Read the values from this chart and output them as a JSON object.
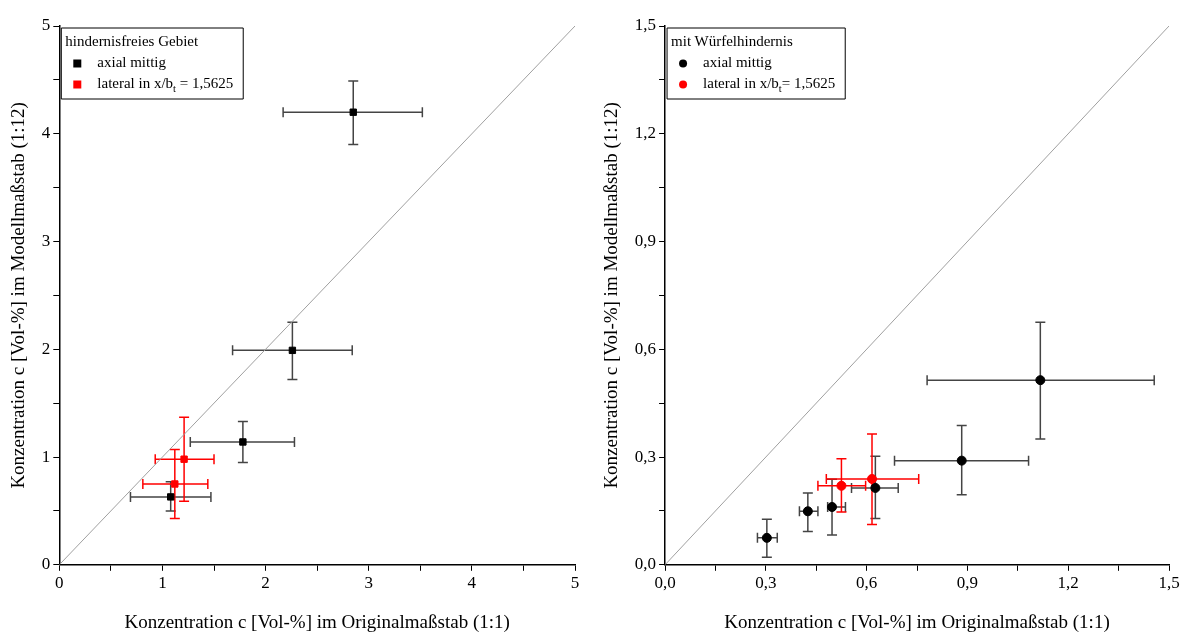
{
  "chart_data": [
    {
      "type": "scatter",
      "xlabel": "Konzentration c [Vol-%] im Originalmaßstab (1:1)",
      "ylabel": "Konzentration c [Vol-%] im Modellmaßstab (1:12)",
      "legend_title": "hindernisfreies Gebiet",
      "legend": "top left",
      "grid": false,
      "marker": "square",
      "xlim": [
        0,
        5
      ],
      "ylim": [
        0,
        5
      ],
      "xticks": [
        0,
        {
          "value": 0.5,
          "label": null
        },
        1,
        {
          "value": 1.5,
          "label": null
        },
        2,
        {
          "value": 2.5,
          "label": null
        },
        3,
        {
          "value": 3.5,
          "label": null
        },
        4,
        {
          "value": 4.5,
          "label": null
        },
        5
      ],
      "yticks": [
        0,
        {
          "value": 0.5,
          "label": null
        },
        1,
        {
          "value": 1.5,
          "label": null
        },
        2,
        {
          "value": 2.5,
          "label": null
        },
        3,
        {
          "value": 3.5,
          "label": null
        },
        4,
        {
          "value": 4.5,
          "label": null
        },
        5
      ],
      "series": [
        {
          "name": "axial mittig",
          "color": "#000000",
          "x": [
            2.85,
            2.26,
            1.78,
            1.08
          ],
          "values": [
            4.2,
            1.99,
            1.14,
            0.63
          ],
          "xerrors": [
            [
              2.17,
              3.52
            ],
            [
              1.68,
              2.84
            ],
            [
              1.27,
              2.28
            ],
            [
              0.69,
              1.47
            ]
          ],
          "errors": [
            [
              3.9,
              4.49
            ],
            [
              1.72,
              2.25
            ],
            [
              0.95,
              1.33
            ],
            [
              0.5,
              0.77
            ]
          ]
        },
        {
          "name": "lateral in x/b$_{t}$ = 1,5625",
          "color": "#ff0000",
          "x": [
            1.21,
            1.12
          ],
          "values": [
            0.98,
            0.75
          ],
          "xerrors": [
            [
              0.93,
              1.5
            ],
            [
              0.81,
              1.44
            ]
          ],
          "errors": [
            [
              0.59,
              1.37
            ],
            [
              0.43,
              1.07
            ]
          ]
        },
        {
          "type": "line",
          "color": "#a0a0a0",
          "marker": "none",
          "x": [
            0,
            5
          ],
          "values": [
            0,
            5
          ]
        }
      ]
    },
    {
      "type": "scatter",
      "xlabel": "Konzentration c [Vol-%] im Originalmaßstab (1:1)",
      "ylabel": "Konzentration c [Vol-%] im Modellmaßstab (1:12)",
      "legend_title": "mit Würfelhindernis",
      "legend": "top left",
      "grid": false,
      "marker": "circle",
      "xlim": [
        0,
        1.5
      ],
      "ylim": [
        0,
        1.5
      ],
      "xticks": [
        {
          "value": 0,
          "label": "0,0"
        },
        {
          "value": 0.15,
          "label": null
        },
        {
          "value": 0.3,
          "label": "0,3"
        },
        {
          "value": 0.45,
          "label": null
        },
        {
          "value": 0.6,
          "label": "0,6"
        },
        {
          "value": 0.75,
          "label": null
        },
        {
          "value": 0.9,
          "label": "0,9"
        },
        {
          "value": 1.05,
          "label": null
        },
        {
          "value": 1.2,
          "label": "1,2"
        },
        {
          "value": 1.35,
          "label": null
        },
        {
          "value": 1.5,
          "label": "1,5"
        }
      ],
      "yticks": [
        {
          "value": 0,
          "label": "0,0"
        },
        {
          "value": 0.15,
          "label": null
        },
        {
          "value": 0.3,
          "label": "0,3"
        },
        {
          "value": 0.45,
          "label": null
        },
        {
          "value": 0.6,
          "label": "0,6"
        },
        {
          "value": 0.75,
          "label": null
        },
        {
          "value": 0.9,
          "label": "0,9"
        },
        {
          "value": 1.05,
          "label": null
        },
        {
          "value": 1.2,
          "label": "1,2"
        },
        {
          "value": 1.35,
          "label": null
        },
        {
          "value": 1.5,
          "label": "1,5"
        }
      ],
      "series": [
        {
          "name": "axial mittig",
          "color": "#000000",
          "x": [
            0.303,
            0.425,
            0.497,
            0.626,
            0.883,
            1.117
          ],
          "values": [
            0.075,
            0.149,
            0.161,
            0.214,
            0.29,
            0.514
          ],
          "xerrors": [
            [
              0.275,
              0.334
            ],
            [
              0.4,
              0.455
            ],
            [
              0.484,
              0.537
            ],
            [
              0.555,
              0.694
            ],
            [
              0.683,
              1.082
            ],
            [
              0.78,
              1.456
            ]
          ],
          "errors": [
            [
              0.021,
              0.127
            ],
            [
              0.093,
              0.2
            ],
            [
              0.083,
              0.238
            ],
            [
              0.129,
              0.302
            ],
            [
              0.195,
              0.388
            ],
            [
              0.35,
              0.675
            ]
          ]
        },
        {
          "name": "lateral in x/b$_{t}$= 1,5625",
          "color": "#ff0000",
          "x": [
            0.525,
            0.616
          ],
          "values": [
            0.22,
            0.239
          ],
          "xerrors": [
            [
              0.455,
              0.597
            ],
            [
              0.48,
              0.755
            ]
          ],
          "errors": [
            [
              0.147,
              0.295
            ],
            [
              0.112,
              0.364
            ]
          ]
        },
        {
          "type": "line",
          "color": "#a0a0a0",
          "marker": "none",
          "x": [
            0,
            1.5
          ],
          "values": [
            0,
            1.5
          ]
        }
      ]
    }
  ]
}
